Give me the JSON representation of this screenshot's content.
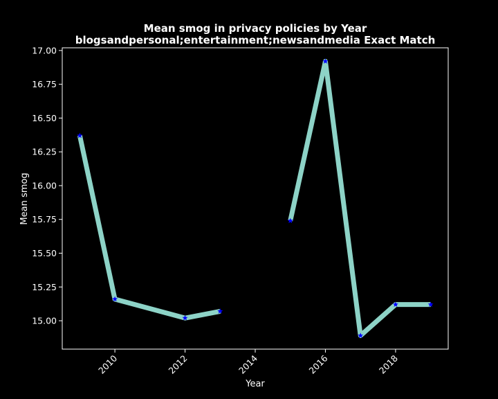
{
  "chart_data": {
    "type": "line",
    "title": "Mean smog in privacy policies by Year",
    "subtitle": "blogsandpersonal;entertainment;newsandmedia Exact Match",
    "xlabel": "Year",
    "ylabel": "Mean smog",
    "xlim": [
      2008.5,
      2019.5
    ],
    "ylim": [
      14.79,
      17.02
    ],
    "x_ticks": [
      2010,
      2012,
      2014,
      2016,
      2018
    ],
    "y_ticks": [
      15.0,
      15.25,
      15.5,
      15.75,
      16.0,
      16.25,
      16.5,
      16.75,
      17.0
    ],
    "y_tick_labels": [
      "15.00",
      "15.25",
      "15.50",
      "15.75",
      "16.00",
      "16.25",
      "16.50",
      "16.75",
      "17.00"
    ],
    "grid": false,
    "line_color": "#8dd3c7",
    "marker_color": "#0000ff",
    "marker": "star",
    "background": "#000000",
    "series": [
      {
        "segments": [
          [
            [
              2009,
              16.37
            ],
            [
              2010,
              15.16
            ],
            [
              2012,
              15.02
            ],
            [
              2013,
              15.07
            ]
          ],
          [
            [
              2015,
              15.74
            ],
            [
              2016,
              16.92
            ],
            [
              2017,
              14.89
            ],
            [
              2018,
              15.12
            ],
            [
              2019,
              15.12
            ]
          ]
        ]
      }
    ]
  }
}
